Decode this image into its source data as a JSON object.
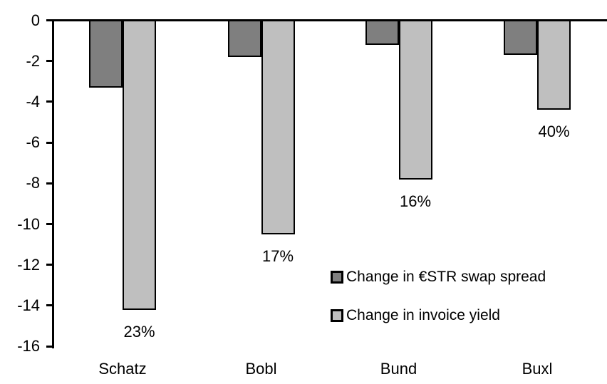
{
  "chart_data": {
    "type": "bar",
    "title": "",
    "xlabel": "",
    "ylabel": "",
    "categories": [
      "Schatz",
      "Bobl",
      "Bund",
      "Buxl"
    ],
    "series": [
      {
        "name": "Change in €STR swap spread",
        "color": "#7F7F7F",
        "values": [
          -3.3,
          -1.8,
          -1.2,
          -1.7
        ]
      },
      {
        "name": "Change in invoice yield",
        "color": "#BFBFBF",
        "values": [
          -14.2,
          -10.5,
          -7.8,
          -4.4
        ]
      }
    ],
    "bar_labels": {
      "attached_series": "Change in invoice yield",
      "values": [
        "23%",
        "17%",
        "16%",
        "40%"
      ]
    },
    "yticks": [
      0,
      -2,
      -4,
      -6,
      -8,
      -10,
      -12,
      -14,
      -16
    ],
    "ylim": [
      -16,
      0
    ],
    "grid": false,
    "legend_position": "inside-right-middle"
  },
  "colors": {
    "background": "#FFFFFF",
    "axis": "#000000",
    "bar_border": "#000000",
    "text": "#000000"
  }
}
